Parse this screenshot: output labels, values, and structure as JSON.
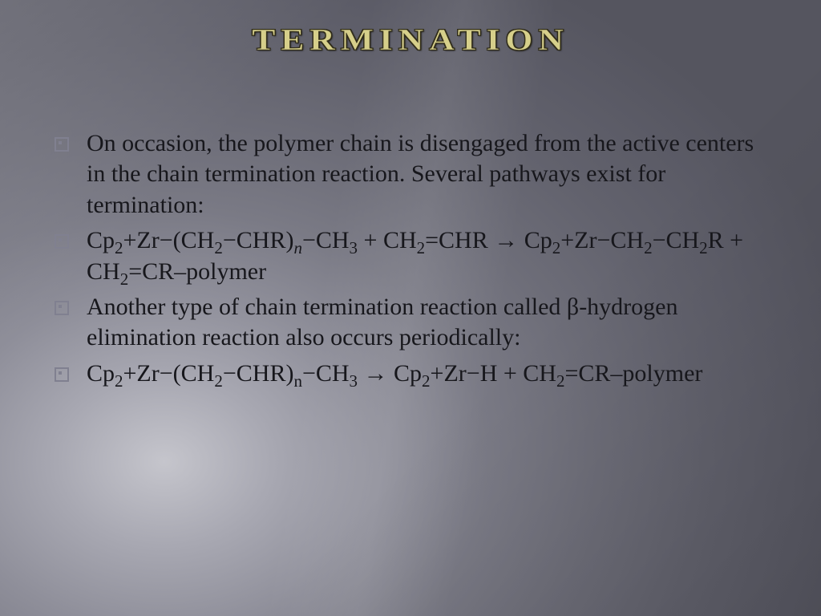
{
  "slide": {
    "title": "TERMINATION",
    "title_color": "#d6cf8a",
    "title_fontsize": 38,
    "title_letterspacing": 6,
    "body_color": "#17171c",
    "body_fontsize": 30,
    "bullet_border_color": "#808090",
    "background_gradient": [
      "#c5c5cc",
      "#a8a8b2",
      "#8f8f9a",
      "#7a7a85",
      "#6d6d78",
      "#62626d",
      "#5a5a65",
      "#55555f"
    ],
    "bullets": [
      {
        "type": "text",
        "content": "On occasion, the polymer chain is disengaged from the active centers in the chain termination reaction. Several pathways exist for termination:"
      },
      {
        "type": "formula",
        "segments": [
          {
            "t": "Cp"
          },
          {
            "t": "2",
            "sub": true
          },
          {
            "t": "+Zr−(CH"
          },
          {
            "t": "2",
            "sub": true
          },
          {
            "t": "−CHR)"
          },
          {
            "t": "n",
            "sub": true,
            "italic": true
          },
          {
            "t": "−CH"
          },
          {
            "t": "3",
            "sub": true
          },
          {
            "t": " + CH"
          },
          {
            "t": "2",
            "sub": true
          },
          {
            "t": "=CHR → Cp"
          },
          {
            "t": "2",
            "sub": true
          },
          {
            "t": "+Zr−CH"
          },
          {
            "t": "2",
            "sub": true
          },
          {
            "t": "−CH"
          },
          {
            "t": "2",
            "sub": true
          },
          {
            "t": "R + CH"
          },
          {
            "t": "2",
            "sub": true
          },
          {
            "t": "=CR–polymer"
          }
        ]
      },
      {
        "type": "text",
        "content": "Another type of chain termination reaction called β-hydrogen elimination reaction also occurs periodically:"
      },
      {
        "type": "formula",
        "segments": [
          {
            "t": "Cp"
          },
          {
            "t": "2",
            "sub": true
          },
          {
            "t": "+Zr−(CH"
          },
          {
            "t": "2",
            "sub": true
          },
          {
            "t": "−CHR)"
          },
          {
            "t": "n",
            "sub": true
          },
          {
            "t": "−CH"
          },
          {
            "t": "3",
            "sub": true
          },
          {
            "t": " → Cp"
          },
          {
            "t": "2",
            "sub": true
          },
          {
            "t": "+Zr−H + CH"
          },
          {
            "t": "2",
            "sub": true
          },
          {
            "t": "=CR–polymer"
          }
        ]
      }
    ]
  }
}
